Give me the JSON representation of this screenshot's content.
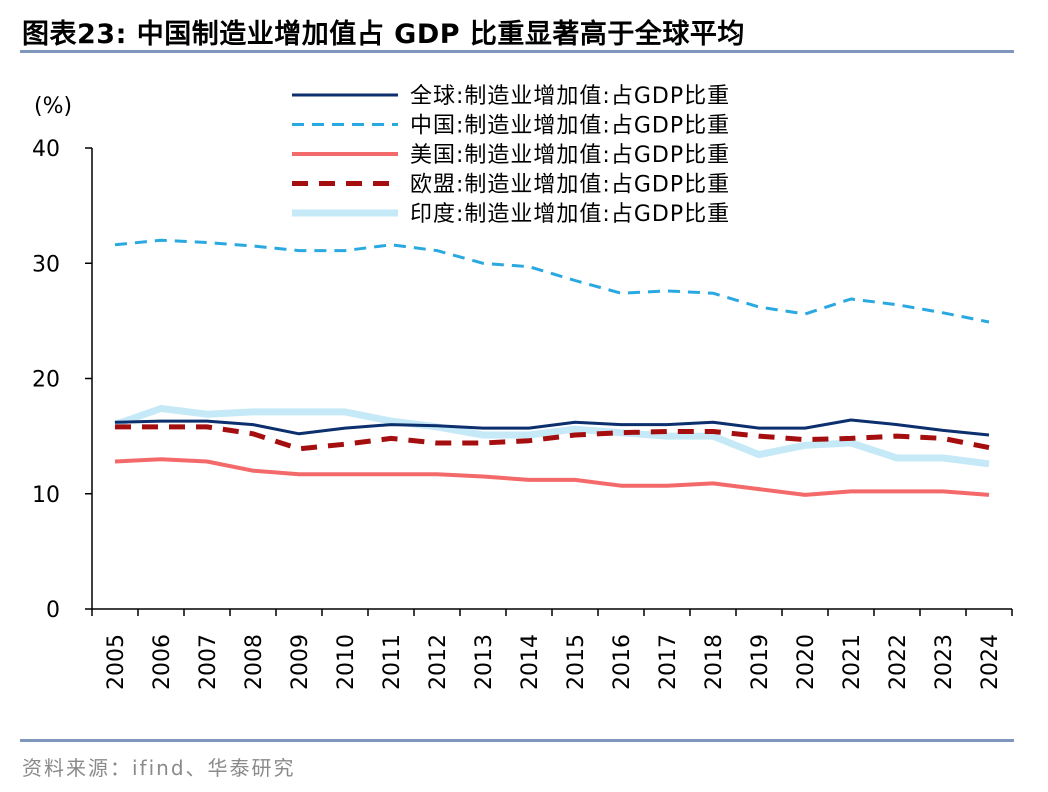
{
  "header": {
    "title": "图表23:   中国制造业增加值占 GDP 比重显著高于全球平均"
  },
  "footer": {
    "source": "资料来源：ifind、华泰研究"
  },
  "chart_data": {
    "type": "line",
    "ylabel": "(%)",
    "ylim": [
      0,
      40
    ],
    "yticks": [
      "0",
      "10",
      "20",
      "30",
      "40"
    ],
    "legend_position": "top-right",
    "x": [
      "2005",
      "2006",
      "2007",
      "2008",
      "2009",
      "2010",
      "2011",
      "2012",
      "2013",
      "2014",
      "2015",
      "2016",
      "2017",
      "2018",
      "2019",
      "2020",
      "2021",
      "2022",
      "2023",
      "2024"
    ],
    "series": [
      {
        "name": "全球:制造业增加值:占GDP比重",
        "color": "#0c2f6e",
        "dash": "solid",
        "width": 3,
        "values": [
          16.2,
          16.3,
          16.3,
          16.0,
          15.2,
          15.7,
          16.0,
          15.9,
          15.7,
          15.7,
          16.2,
          16.0,
          16.0,
          16.2,
          15.7,
          15.7,
          16.4,
          16.0,
          15.5,
          15.1
        ]
      },
      {
        "name": "中国:制造业增加值:占GDP比重",
        "color": "#2aa8e0",
        "dash": "dashed",
        "width": 3,
        "values": [
          31.6,
          32.0,
          31.8,
          31.5,
          31.1,
          31.1,
          31.6,
          31.1,
          30.0,
          29.7,
          28.5,
          27.4,
          27.6,
          27.4,
          26.2,
          25.6,
          26.9,
          26.4,
          25.7,
          24.9
        ]
      },
      {
        "name": "美国:制造业增加值:占GDP比重",
        "color": "#f46a6a",
        "dash": "solid",
        "width": 4,
        "values": [
          12.8,
          13.0,
          12.8,
          12.0,
          11.7,
          11.7,
          11.7,
          11.7,
          11.5,
          11.2,
          11.2,
          10.7,
          10.7,
          10.9,
          10.4,
          9.9,
          10.2,
          10.2,
          10.2,
          9.9
        ]
      },
      {
        "name": "欧盟:制造业增加值:占GDP比重",
        "color": "#a40e0e",
        "dash": "dashed",
        "width": 5,
        "values": [
          15.8,
          15.8,
          15.8,
          15.2,
          13.9,
          14.3,
          14.8,
          14.4,
          14.4,
          14.6,
          15.1,
          15.3,
          15.4,
          15.4,
          15.0,
          14.7,
          14.8,
          15.0,
          14.8,
          14.0
        ]
      },
      {
        "name": "印度:制造业增加值:占GDP比重",
        "color": "#c5e9f7",
        "dash": "solid",
        "width": 7,
        "values": [
          16.0,
          17.4,
          16.9,
          17.1,
          17.1,
          17.1,
          16.3,
          15.8,
          15.1,
          15.1,
          15.6,
          15.3,
          15.0,
          15.0,
          13.4,
          14.2,
          14.4,
          13.1,
          13.1,
          12.6
        ]
      }
    ]
  }
}
